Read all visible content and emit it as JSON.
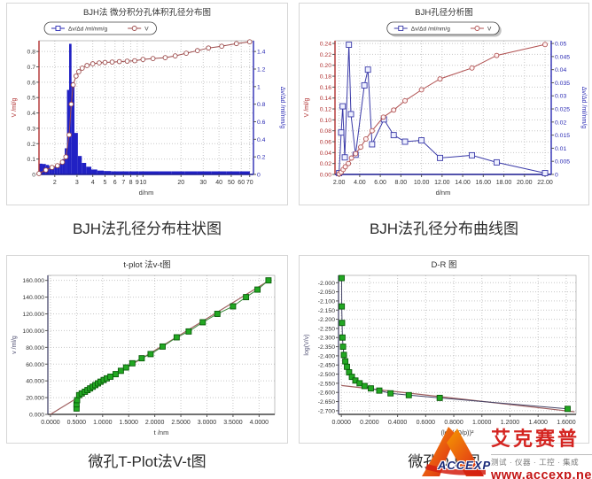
{
  "captions": {
    "top_left": "BJH法孔径分布柱状图",
    "top_right": "BJH法孔径分布曲线图",
    "bottom_left": "微孔T-Plot法V-t图",
    "bottom_right": "微孔D-R图"
  },
  "logo": {
    "brand_cn": "艾克赛普",
    "brand_en": "ACCEXP",
    "tagline": "测试 · 仪器 · 工控 · 集成",
    "url": "www.accexp.net",
    "accent_color": "#d42420"
  },
  "chart_data": [
    {
      "name": "bjh-differential-integral-distribution",
      "type": "bar",
      "title": "BJH法 微分积分孔体积孔径分布图",
      "margins": {
        "l": 36,
        "r": 38,
        "t": 42,
        "b": 34
      },
      "x_axis": {
        "label": "d/nm",
        "scale": "log",
        "min": 1.5,
        "max": 75,
        "color": "#1a1a90",
        "ticks": [
          2,
          3,
          4,
          5,
          6,
          7,
          8,
          9,
          10,
          20,
          30,
          40,
          50,
          60,
          70
        ],
        "labels": [
          "2",
          "3",
          "4",
          "5",
          "6",
          "7",
          "8",
          "9",
          "10",
          "20",
          "30",
          "40",
          "50",
          "60",
          "70"
        ]
      },
      "y_left": {
        "label": "V /ml/g",
        "min": 0,
        "max": 0.87,
        "color": "#b03030",
        "tick_color": "#333333",
        "ticks": [
          0,
          0.1,
          0.2,
          0.3,
          0.4,
          0.5,
          0.6,
          0.7,
          0.8
        ],
        "labels": [
          "0",
          "0.1",
          "0.2",
          "0.3",
          "0.4",
          "0.5",
          "0.6",
          "0.7",
          "0.8"
        ]
      },
      "y_right": {
        "label": "Δv/Δd /ml/nm/g",
        "min": 0,
        "max": 1.5225,
        "color": "#2a2ab4",
        "tick_color": "#2a2ab4",
        "ticks": [
          0,
          0.2,
          0.4,
          0.6,
          0.8,
          1,
          1.2,
          1.4
        ],
        "labels": [
          "0",
          "0.2",
          "0.4",
          "0.6",
          "0.8",
          "1",
          "1.2",
          "1.4"
        ]
      },
      "legend": {
        "pos": "left",
        "y": 21,
        "shadow": false,
        "items": [
          {
            "label": "Δv/Δd /ml/nm/g",
            "marker": "square",
            "color": "#2a2ab4"
          },
          {
            "label": "V",
            "marker": "circle",
            "color": "#9c4a4a"
          }
        ]
      },
      "series": [
        {
          "name": "pore-volume-bars",
          "type": "bar",
          "axis": "left",
          "color": "#2121c4",
          "x": [
            1.55,
            1.65,
            1.75,
            1.85,
            1.95,
            2.05,
            2.15,
            2.25,
            2.35,
            2.45,
            2.55,
            2.65,
            2.78,
            2.95,
            3.15,
            3.4,
            3.7,
            4.1,
            4.6,
            5.2,
            6,
            7,
            8.5,
            10,
            12,
            15,
            19,
            24,
            30,
            40,
            52,
            65
          ],
          "h": [
            0.07,
            0.068,
            0.062,
            0.055,
            0.05,
            0.053,
            0.06,
            0.07,
            0.1,
            0.17,
            0.55,
            0.85,
            0.6,
            0.27,
            0.12,
            0.075,
            0.05,
            0.032,
            0.025,
            0.022,
            0.02,
            0.02,
            0.02,
            0.02,
            0.02,
            0.02,
            0.02,
            0.02,
            0.02,
            0.02,
            0.02,
            0.02
          ]
        },
        {
          "name": "cumulative-v-curve",
          "type": "line",
          "axis": "right",
          "color": "#9c4a4a",
          "marker": "circle",
          "marker_fill": "#ffffff",
          "marker_size": 4.8,
          "width": 1,
          "x": [
            1.5,
            1.7,
            1.9,
            2.1,
            2.3,
            2.45,
            2.6,
            2.7,
            2.8,
            2.95,
            3.1,
            3.3,
            3.6,
            4.0,
            4.5,
            5.0,
            5.7,
            6.5,
            7.5,
            8.6,
            10,
            12,
            15,
            18,
            22,
            27,
            33,
            42,
            55,
            70
          ],
          "y": [
            0.01,
            0.05,
            0.08,
            0.1,
            0.14,
            0.2,
            0.45,
            0.8,
            1.02,
            1.12,
            1.17,
            1.21,
            1.24,
            1.26,
            1.27,
            1.275,
            1.28,
            1.285,
            1.29,
            1.295,
            1.31,
            1.32,
            1.33,
            1.35,
            1.38,
            1.41,
            1.44,
            1.46,
            1.49,
            1.51
          ]
        }
      ]
    },
    {
      "name": "bjh-pore-analysis",
      "type": "line",
      "title": "BJH孔径分析图",
      "margins": {
        "l": 40,
        "r": 42,
        "t": 42,
        "b": 34
      },
      "x_axis": {
        "label": "d/nm",
        "scale": "linear",
        "min": 1.6,
        "max": 22.6,
        "color": "#1a1a90",
        "ticks": [
          2,
          4,
          6,
          8,
          10,
          12,
          14,
          16,
          18,
          20,
          22
        ],
        "labels": [
          "2.00",
          "4.00",
          "6.00",
          "8.00",
          "10.00",
          "12.00",
          "14.00",
          "16.00",
          "18.00",
          "20.00",
          "22.00"
        ]
      },
      "y_left": {
        "label": "V /ml/g",
        "min": 0,
        "max": 0.245,
        "color": "#b03030",
        "tick_color": "#b03030",
        "ticks": [
          0,
          0.02,
          0.04,
          0.06,
          0.08,
          0.1,
          0.12,
          0.14,
          0.16,
          0.18,
          0.2,
          0.22,
          0.24
        ],
        "labels": [
          "0.00",
          "0.02",
          "0.04",
          "0.06",
          "0.08",
          "0.10",
          "0.12",
          "0.14",
          "0.16",
          "0.18",
          "0.20",
          "0.22",
          "0.24"
        ]
      },
      "y_right": {
        "label": "Δv/Δd /ml/nm/g",
        "min": 0,
        "max": 0.05104,
        "color": "#2a2ab4",
        "tick_color": "#2a2ab4",
        "ticks": [
          0,
          0.005,
          0.01,
          0.015,
          0.02,
          0.025,
          0.03,
          0.035,
          0.04,
          0.045,
          0.05
        ],
        "labels": [
          "0",
          "0.005",
          "0.01",
          "0.015",
          "0.02",
          "0.025",
          "0.03",
          "0.035",
          "0.04",
          "0.045",
          "0.05"
        ]
      },
      "legend": {
        "pos": "center",
        "y": 21,
        "shadow": true,
        "items": [
          {
            "label": "Δv/Δd /ml/nm/g",
            "marker": "square",
            "color": "#3a3aa8"
          },
          {
            "label": "V",
            "marker": "circle",
            "color": "#b05050"
          }
        ]
      },
      "series": [
        {
          "name": "dv-dd-curve",
          "type": "line",
          "axis": "right",
          "color": "#3a3aa8",
          "marker": "square",
          "marker_fill": "#eef0ff",
          "marker_size": 6,
          "width": 1,
          "x": [
            2.0,
            2.2,
            2.35,
            2.55,
            2.95,
            3.15,
            3.6,
            4.45,
            4.8,
            5.2,
            6.35,
            7.3,
            8.4,
            10.0,
            11.8,
            14.9,
            17.3,
            22.0
          ],
          "y": [
            0.0005,
            0.016,
            0.026,
            0.0065,
            0.0495,
            0.023,
            0.0075,
            0.034,
            0.04,
            0.0115,
            0.021,
            0.015,
            0.0125,
            0.013,
            0.0063,
            0.0073,
            0.0046,
            0.0005
          ]
        },
        {
          "name": "cumulative-v-curve",
          "type": "line",
          "axis": "left",
          "color": "#b05050",
          "marker": "circle",
          "marker_fill": "#fff4f4",
          "marker_size": 5,
          "width": 1,
          "x": [
            2.0,
            2.2,
            2.4,
            2.6,
            2.9,
            3.2,
            3.6,
            4.1,
            4.6,
            5.2,
            6.3,
            7.3,
            8.4,
            10.0,
            11.8,
            14.9,
            17.3,
            22.0
          ],
          "y": [
            0.001,
            0.004,
            0.009,
            0.014,
            0.02,
            0.03,
            0.038,
            0.05,
            0.065,
            0.08,
            0.105,
            0.118,
            0.135,
            0.155,
            0.175,
            0.195,
            0.218,
            0.238
          ]
        }
      ]
    },
    {
      "name": "t-plot-v-t",
      "type": "scatter",
      "title": "t-plot 法v-t图",
      "margins": {
        "l": 46,
        "r": 14,
        "t": 22,
        "b": 32
      },
      "x_axis": {
        "label": "t /nm",
        "scale": "linear",
        "min": -0.05,
        "max": 4.3,
        "color": "#444444",
        "ticks": [
          0,
          0.5,
          1,
          1.5,
          2,
          2.5,
          3,
          3.5,
          4
        ],
        "labels": [
          "0.0000",
          "0.5000",
          "1.0000",
          "1.5000",
          "2.0000",
          "2.5000",
          "3.0000",
          "3.5000",
          "4.0000"
        ]
      },
      "y_left": {
        "label": "v /ml/g",
        "min": 0,
        "max": 166,
        "color": "#555577",
        "tick_color": "#333333",
        "ticks": [
          0,
          20,
          40,
          60,
          80,
          100,
          120,
          140,
          160
        ],
        "labels": [
          "0.000",
          "20.000",
          "40.000",
          "60.000",
          "80.000",
          "100.000",
          "120.000",
          "140.000",
          "160.000"
        ]
      },
      "series": [
        {
          "name": "linear-fit-line",
          "type": "line",
          "axis": "left",
          "color": "#a06060",
          "marker": "none",
          "width": 1.2,
          "x": [
            0,
            4.22
          ],
          "y": [
            0,
            161
          ]
        },
        {
          "name": "v-t-points",
          "type": "line",
          "axis": "left",
          "color": "#3c8a3c",
          "marker": "square",
          "marker_fill": "#22a822",
          "marker_stroke": "#0a5c0a",
          "marker_size": 6,
          "width": 1,
          "x": [
            0.5,
            0.5,
            0.51,
            0.55,
            0.6,
            0.66,
            0.71,
            0.76,
            0.81,
            0.86,
            0.91,
            0.96,
            1.02,
            1.08,
            1.15,
            1.25,
            1.35,
            1.45,
            1.57,
            1.75,
            1.92,
            2.15,
            2.42,
            2.65,
            2.92,
            3.2,
            3.5,
            3.75,
            3.97,
            4.18
          ],
          "y": [
            7,
            12,
            17,
            23,
            25,
            27,
            29,
            31,
            33,
            35,
            37,
            39,
            41,
            43,
            45,
            48,
            52,
            56,
            61,
            67,
            72,
            81,
            92,
            99,
            110,
            120,
            129,
            140,
            149,
            160
          ]
        }
      ]
    },
    {
      "name": "d-r-plot",
      "type": "scatter",
      "title": "D-R 图",
      "margins": {
        "l": 44,
        "r": 14,
        "t": 22,
        "b": 32
      },
      "x_axis": {
        "label": "(log(p0/p))²",
        "scale": "linear",
        "min": -0.02,
        "max": 1.67,
        "color": "#444444",
        "ticks": [
          0,
          0.2,
          0.4,
          0.6,
          0.8,
          1,
          1.2,
          1.4,
          1.6
        ],
        "labels": [
          "0.0000",
          "0.2000",
          "0.4000",
          "0.6000",
          "0.8000",
          "1.0000",
          "1.2000",
          "1.4000",
          "1.6000"
        ]
      },
      "y_left": {
        "label": "log(V/v)",
        "min": -2.72,
        "max": -1.96,
        "color": "#555577",
        "tick_color": "#333333",
        "ticks": [
          -2.0,
          -2.05,
          -2.1,
          -2.15,
          -2.2,
          -2.25,
          -2.3,
          -2.35,
          -2.4,
          -2.45,
          -2.5,
          -2.55,
          -2.6,
          -2.65,
          -2.7
        ],
        "labels": [
          "-2.000",
          "-2.050",
          "-2.100",
          "-2.150",
          "-2.200",
          "-2.250",
          "-2.300",
          "-2.350",
          "-2.400",
          "-2.450",
          "-2.500",
          "-2.550",
          "-2.600",
          "-2.650",
          "-2.700"
        ]
      },
      "series": [
        {
          "name": "dr-fit-line",
          "type": "line",
          "axis": "left",
          "color": "#a06060",
          "marker": "none",
          "width": 1.2,
          "x": [
            0,
            1.66
          ],
          "y": [
            -2.562,
            -2.706
          ]
        },
        {
          "name": "dr-points",
          "type": "line",
          "axis": "left",
          "color": "#444466",
          "marker": "square",
          "marker_fill": "#22a822",
          "marker_stroke": "#0a5c0a",
          "marker_size": 6,
          "width": 1,
          "x": [
            0.002,
            0.003,
            0.005,
            0.008,
            0.012,
            0.018,
            0.028,
            0.04,
            0.055,
            0.075,
            0.1,
            0.13,
            0.165,
            0.21,
            0.27,
            0.35,
            0.48,
            0.7,
            1.61
          ],
          "y": [
            -1.975,
            -2.13,
            -2.22,
            -2.3,
            -2.35,
            -2.395,
            -2.43,
            -2.46,
            -2.49,
            -2.515,
            -2.535,
            -2.55,
            -2.565,
            -2.578,
            -2.59,
            -2.605,
            -2.615,
            -2.63,
            -2.69
          ]
        }
      ]
    }
  ]
}
